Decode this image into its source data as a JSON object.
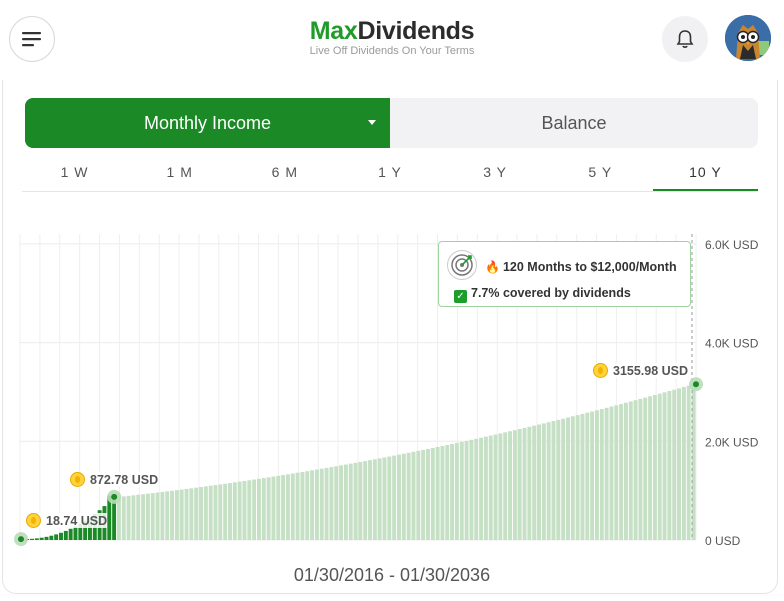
{
  "header": {
    "logo_max": "Max",
    "logo_dividends": "Dividends",
    "tagline": "Live Off Dividends On Your Terms",
    "menu_icon": "menu-icon",
    "bell_icon": "bell-icon",
    "avatar": "owl-avatar"
  },
  "toggle": {
    "selected": "Monthly Income",
    "other": "Balance"
  },
  "ranges": [
    {
      "label": "1 W",
      "active": false
    },
    {
      "label": "1 M",
      "active": false
    },
    {
      "label": "6 M",
      "active": false
    },
    {
      "label": "1 Y",
      "active": false
    },
    {
      "label": "3 Y",
      "active": false
    },
    {
      "label": "5 Y",
      "active": false
    },
    {
      "label": "10 Y",
      "active": true
    }
  ],
  "tooltip": {
    "goal": "120 Months to $12,000/Month",
    "covered": "7.7% covered by dividends"
  },
  "date_range": "01/30/2016 - 01/30/2036",
  "colors": {
    "brand": "#1b8a26",
    "bar_past": "#1b8a26",
    "bar_projected": "#c5e0c4"
  },
  "chart_data": {
    "type": "bar",
    "ylim": [
      0,
      6200
    ],
    "yticks": [
      "0 USD",
      "2.0K USD",
      "4.0K USD",
      "6.0K USD"
    ],
    "yticks_values": [
      0,
      2000,
      4000,
      6000
    ],
    "start_value": 18.74,
    "current_value": 872.78,
    "end_value": 3155.98,
    "markers": [
      {
        "label": "18.74 USD",
        "value": 18.74
      },
      {
        "label": "872.78 USD",
        "value": 872.78
      },
      {
        "label": "3155.98 USD",
        "value": 3155.98
      }
    ],
    "past_bars": 20,
    "projected_bars": 120
  }
}
